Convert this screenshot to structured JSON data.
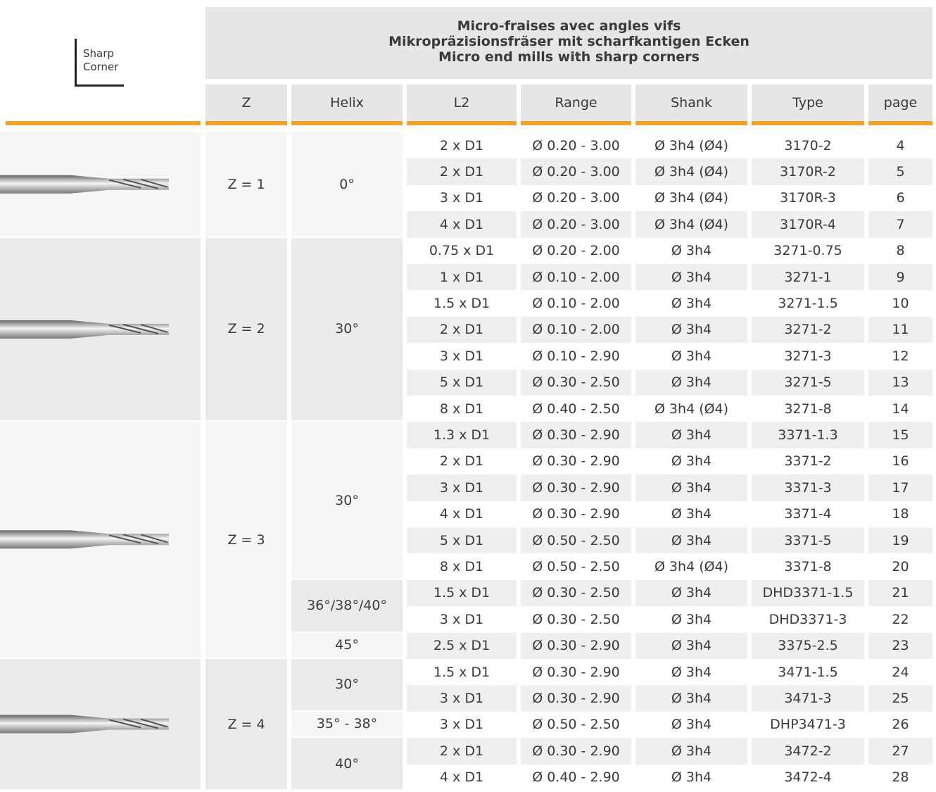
{
  "header": {
    "corner_label": [
      "Sharp",
      "Corner"
    ],
    "title": [
      "Micro-fraises avec angles vifs",
      "Mikropräzisionsfräser mit scharfkantigen Ecken",
      "Micro end mills with sharp corners"
    ],
    "columns": [
      "Z",
      "Helix",
      "L2",
      "Range",
      "Shank",
      "Type",
      "page"
    ]
  },
  "table": {
    "groups": [
      {
        "z": "Z = 1",
        "helix": [
          {
            "label": "0°",
            "rows": [
              [
                "2 x D1",
                "Ø 0.20 - 3.00",
                "Ø 3h4 (Ø4)",
                "3170-2",
                "4"
              ],
              [
                "2 x D1",
                "Ø 0.20 - 3.00",
                "Ø 3h4 (Ø4)",
                "3170R-2",
                "5"
              ],
              [
                "3 x D1",
                "Ø 0.20 - 3.00",
                "Ø 3h4 (Ø4)",
                "3170R-3",
                "6"
              ],
              [
                "4 x D1",
                "Ø 0.20 - 3.00",
                "Ø 3h4 (Ø4)",
                "3170R-4",
                "7"
              ]
            ]
          }
        ]
      },
      {
        "z": "Z = 2",
        "helix": [
          {
            "label": "30°",
            "rows": [
              [
                "0.75 x D1",
                "Ø 0.20 - 2.00",
                "Ø 3h4",
                "3271-0.75",
                "8"
              ],
              [
                "1 x D1",
                "Ø 0.10 - 2.00",
                "Ø 3h4",
                "3271-1",
                "9"
              ],
              [
                "1.5 x D1",
                "Ø 0.10 - 2.00",
                "Ø 3h4",
                "3271-1.5",
                "10"
              ],
              [
                "2 x D1",
                "Ø 0.10 - 2.00",
                "Ø 3h4",
                "3271-2",
                "11"
              ],
              [
                "3 x D1",
                "Ø 0.10 - 2.90",
                "Ø 3h4",
                "3271-3",
                "12"
              ],
              [
                "5 x D1",
                "Ø 0.30 - 2.50",
                "Ø 3h4",
                "3271-5",
                "13"
              ],
              [
                "8 x D1",
                "Ø 0.40 - 2.50",
                "Ø 3h4 (Ø4)",
                "3271-8",
                "14"
              ]
            ]
          }
        ]
      },
      {
        "z": "Z = 3",
        "helix": [
          {
            "label": "30°",
            "rows": [
              [
                "1.3 x D1",
                "Ø 0.30 - 2.90",
                "Ø 3h4",
                "3371-1.3",
                "15"
              ],
              [
                "2 x D1",
                "Ø 0.30 - 2.90",
                "Ø 3h4",
                "3371-2",
                "16"
              ],
              [
                "3 x D1",
                "Ø 0.30 - 2.90",
                "Ø 3h4",
                "3371-3",
                "17"
              ],
              [
                "4 x D1",
                "Ø 0.30 - 2.90",
                "Ø 3h4",
                "3371-4",
                "18"
              ],
              [
                "5 x D1",
                "Ø 0.50 - 2.50",
                "Ø 3h4",
                "3371-5",
                "19"
              ],
              [
                "8 x D1",
                "Ø 0.50 - 2.50",
                "Ø 3h4 (Ø4)",
                "3371-8",
                "20"
              ]
            ]
          },
          {
            "label": "36°/38°/40°",
            "rows": [
              [
                "1.5 x D1",
                "Ø 0.30 - 2.50",
                "Ø 3h4",
                "DHD3371-1.5",
                "21"
              ],
              [
                "3 x D1",
                "Ø 0.30 - 2.50",
                "Ø 3h4",
                "DHD3371-3",
                "22"
              ]
            ]
          },
          {
            "label": "45°",
            "rows": [
              [
                "2.5 x D1",
                "Ø 0.30 - 2.90",
                "Ø 3h4",
                "3375-2.5",
                "23"
              ]
            ]
          }
        ]
      },
      {
        "z": "Z = 4",
        "helix": [
          {
            "label": "30°",
            "rows": [
              [
                "1.5 x D1",
                "Ø 0.30 - 2.90",
                "Ø 3h4",
                "3471-1.5",
                "24"
              ],
              [
                "3 x D1",
                "Ø 0.30 - 2.90",
                "Ø 3h4",
                "3471-3",
                "25"
              ]
            ]
          },
          {
            "label": "35° - 38°",
            "rows": [
              [
                "3 x D1",
                "Ø 0.50 - 2.50",
                "Ø 3h4",
                "DHP3471-3",
                "26"
              ]
            ]
          },
          {
            "label": "40°",
            "rows": [
              [
                "2 x D1",
                "Ø 0.30 - 2.90",
                "Ø 3h4",
                "3472-2",
                "27"
              ],
              [
                "4 x D1",
                "Ø 0.40 - 2.90",
                "Ø 3h4",
                "3472-4",
                "28"
              ]
            ]
          }
        ]
      }
    ]
  }
}
